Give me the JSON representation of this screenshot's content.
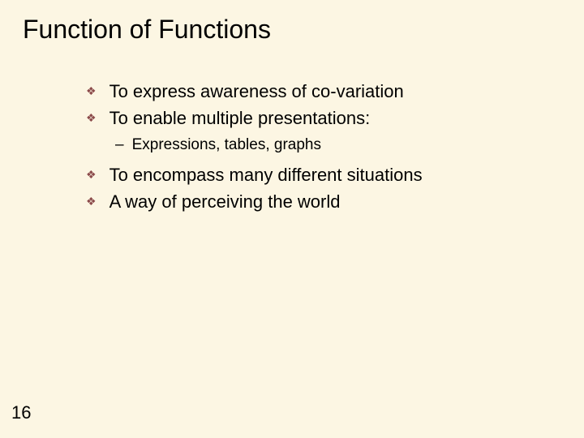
{
  "slide": {
    "title": "Function of Functions",
    "page_number": "16",
    "background_color": "#fcf6e3",
    "bullet_color": "#8b4a4a",
    "title_fontsize": 32,
    "bullet_fontsize": 22,
    "sub_bullet_fontsize": 19,
    "bullets": [
      {
        "text": "To express awareness of co-variation"
      },
      {
        "text": "To enable multiple presentations:"
      }
    ],
    "sub_bullets": [
      {
        "text": "Expressions, tables, graphs"
      }
    ],
    "bullets2": [
      {
        "text": "To encompass many different situations"
      },
      {
        "text": "A way of perceiving the world"
      }
    ]
  }
}
